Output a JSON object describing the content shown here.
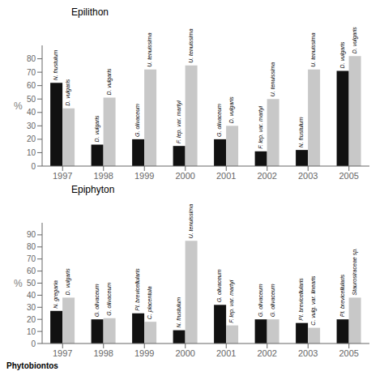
{
  "chart_data": [
    {
      "type": "bar",
      "title": "Epilithon",
      "ylabel": "%",
      "categories": [
        "1997",
        "1998",
        "1999",
        "2000",
        "2001",
        "2002",
        "2003",
        "2005"
      ],
      "series": [
        {
          "color": "#111111",
          "values": [
            62,
            16,
            20,
            15,
            20,
            11,
            12,
            71
          ],
          "labels": [
            "N. frustulum",
            "D. vulgaris",
            "G. olivaceum",
            "F. lep. var. martyi",
            "G. olivaceum",
            "F. lep. var. martyi",
            "N. frustulum",
            "D. vulgaris"
          ]
        },
        {
          "color": "#c8c8c8",
          "values": [
            43,
            51,
            72,
            75,
            30,
            50,
            72,
            82
          ],
          "labels": [
            "D. vulgaris",
            "D. vulgaris",
            "U. tenuissima",
            "U. tenuissima",
            "D. vulgaris",
            "U. tenuissima",
            "U. tenuissima",
            "D. vulgaris"
          ]
        }
      ],
      "ylim": [
        0,
        90
      ],
      "yticks": [
        0,
        10,
        20,
        30,
        40,
        50,
        60,
        70,
        80
      ],
      "grid": false
    },
    {
      "type": "bar",
      "title": "Epiphyton",
      "ylabel": "%",
      "categories": [
        "1997",
        "1998",
        "1999",
        "2000",
        "2001",
        "2002",
        "2003",
        "2005"
      ],
      "series": [
        {
          "color": "#111111",
          "values": [
            27,
            20,
            25,
            11,
            32,
            20,
            17,
            20
          ],
          "labels": [
            "N. gregaria",
            "G. olivaceum",
            "Pl. brevicellularis",
            "N. frustulum",
            "G. olivaceum",
            "G. olivaceum",
            "Pl. brevicellularis",
            "Pl. brevicellularis"
          ]
        },
        {
          "color": "#c8c8c8",
          "values": [
            38,
            21,
            18,
            85,
            15,
            20,
            13,
            38
          ],
          "labels": [
            "D. vulgaris",
            "G. olivaceum",
            "C. placentula",
            "U. tenuissima",
            "F. lep. var. martyi",
            "G. olivaceum",
            "C. vulg. var. linearis",
            "Staurosiraceae sp."
          ]
        }
      ],
      "ylim": [
        0,
        100
      ],
      "yticks": [
        0,
        10,
        20,
        30,
        40,
        50,
        60,
        70,
        80,
        90
      ],
      "grid": false,
      "annotations": [
        "Phytobiontos"
      ]
    }
  ]
}
